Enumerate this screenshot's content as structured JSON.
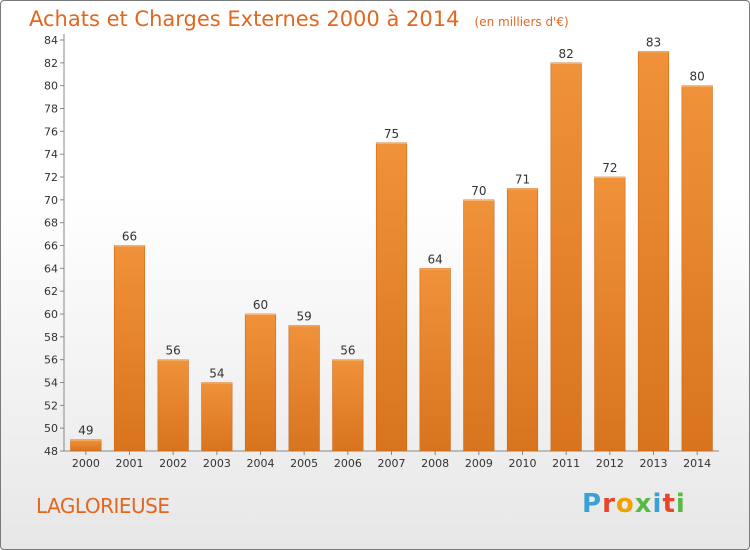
{
  "chart_data": {
    "type": "bar",
    "title": "Achats et Charges Externes 2000 à 2014",
    "unit_label": "(en milliers d'€)",
    "categories": [
      "2000",
      "2001",
      "2002",
      "2003",
      "2004",
      "2005",
      "2006",
      "2007",
      "2008",
      "2009",
      "2010",
      "2011",
      "2012",
      "2013",
      "2014"
    ],
    "values": [
      49,
      66,
      56,
      54,
      60,
      59,
      56,
      75,
      64,
      70,
      71,
      82,
      72,
      83,
      80
    ],
    "ylim": [
      48,
      84
    ],
    "yticks": [
      48,
      50,
      52,
      54,
      56,
      58,
      60,
      62,
      64,
      66,
      68,
      70,
      72,
      74,
      76,
      78,
      80,
      82,
      84
    ],
    "grid": false,
    "bar_color": "#f0923a",
    "bar_color_dark": "#d8741e"
  },
  "footer": {
    "commune": "LAGLORIEUSE",
    "logo_text": "Proxiti",
    "logo_colors": [
      "#3aa0d8",
      "#e8432b",
      "#f2a100",
      "#59b947",
      "#3aa0d8",
      "#e8432b",
      "#59b947"
    ]
  },
  "colors": {
    "accent": "#e2671f",
    "axis": "#888888"
  }
}
